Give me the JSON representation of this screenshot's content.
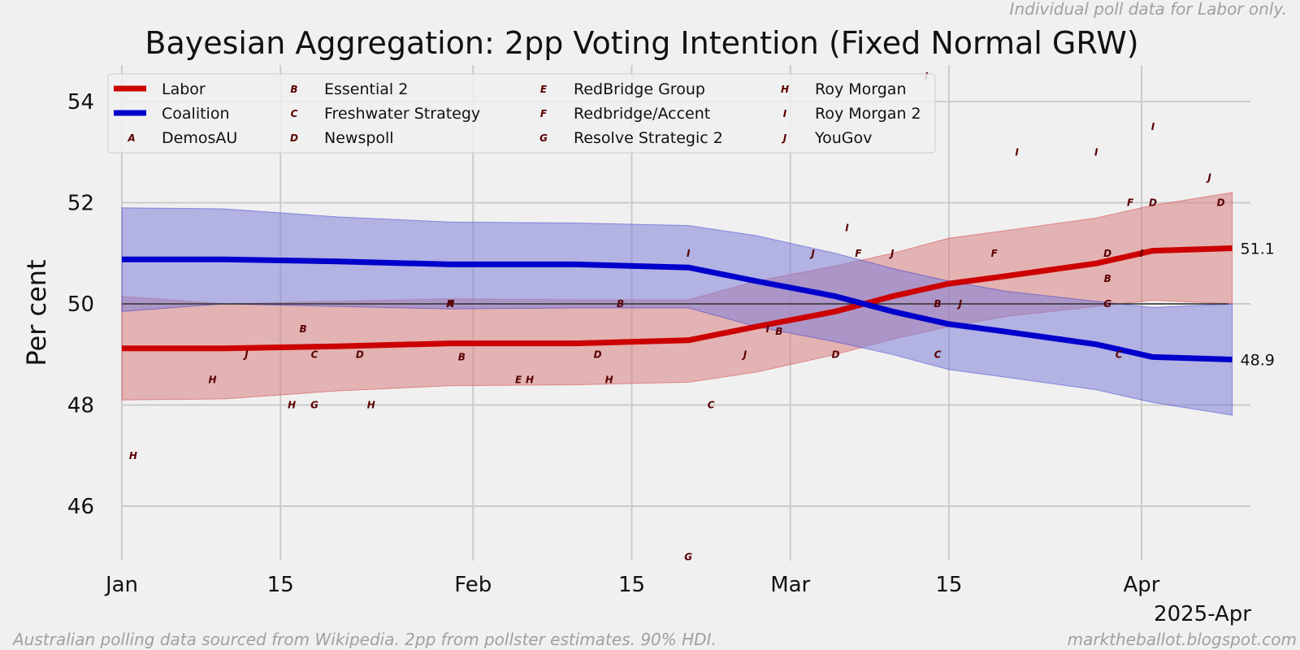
{
  "header_note": "Individual poll data for Labor only.",
  "footer_left": "Australian polling data sourced from Wikipedia. 2pp from pollster estimates. 90% HDI.",
  "footer_right": "marktheballot.blogspot.com",
  "chart_data": {
    "type": "line",
    "title": "Bayesian Aggregation: 2pp Voting Intention (Fixed Normal GRW)",
    "ylabel": "Per cent",
    "xlabel": "",
    "x_period_label": "2025-Apr",
    "x_domain": [
      "2025-01-01",
      "2025-04-09"
    ],
    "ylim": [
      44.8,
      54.7
    ],
    "x_ticks": [
      {
        "date": "2025-01-01",
        "label": "Jan"
      },
      {
        "date": "2025-01-15",
        "label": "15"
      },
      {
        "date": "2025-02-01",
        "label": "Feb"
      },
      {
        "date": "2025-02-15",
        "label": "15"
      },
      {
        "date": "2025-03-01",
        "label": "Mar"
      },
      {
        "date": "2025-03-15",
        "label": "15"
      },
      {
        "date": "2025-04-01",
        "label": "Apr"
      }
    ],
    "y_ticks": [
      46,
      48,
      50,
      52,
      54
    ],
    "reference_line": 50,
    "grid": true,
    "legend_position": "top-left",
    "end_labels": [
      "51.1",
      "48.9"
    ],
    "series": [
      {
        "name": "Labor",
        "color": "#cc0000",
        "band_color": "#d98080",
        "x": [
          "2025-01-01",
          "2025-01-10",
          "2025-01-20",
          "2025-01-30",
          "2025-02-10",
          "2025-02-20",
          "2025-02-26",
          "2025-03-05",
          "2025-03-10",
          "2025-03-15",
          "2025-03-20",
          "2025-03-28",
          "2025-04-02",
          "2025-04-09"
        ],
        "values": [
          49.12,
          49.12,
          49.16,
          49.22,
          49.22,
          49.28,
          49.55,
          49.85,
          50.15,
          50.4,
          50.55,
          50.8,
          51.05,
          51.1
        ],
        "lower": [
          48.1,
          48.12,
          48.28,
          48.38,
          48.4,
          48.45,
          48.65,
          49.0,
          49.3,
          49.55,
          49.75,
          49.95,
          50.07,
          50.0
        ],
        "upper": [
          50.15,
          50.0,
          50.05,
          50.1,
          50.08,
          50.08,
          50.45,
          50.75,
          51.0,
          51.3,
          51.45,
          51.7,
          51.95,
          52.2
        ]
      },
      {
        "name": "Coalition",
        "color": "#0000cc",
        "band_color": "#8080d9",
        "x": [
          "2025-01-01",
          "2025-01-10",
          "2025-01-20",
          "2025-01-30",
          "2025-02-10",
          "2025-02-20",
          "2025-02-26",
          "2025-03-05",
          "2025-03-10",
          "2025-03-15",
          "2025-03-20",
          "2025-03-28",
          "2025-04-02",
          "2025-04-09"
        ],
        "values": [
          50.88,
          50.88,
          50.84,
          50.78,
          50.78,
          50.72,
          50.45,
          50.15,
          49.85,
          49.6,
          49.45,
          49.2,
          48.95,
          48.9
        ],
        "lower": [
          49.85,
          50.0,
          49.95,
          49.9,
          49.92,
          49.92,
          49.55,
          49.25,
          49.0,
          48.7,
          48.55,
          48.3,
          48.05,
          47.8
        ],
        "upper": [
          51.9,
          51.88,
          51.72,
          51.62,
          51.6,
          51.55,
          51.35,
          51.0,
          50.7,
          50.45,
          50.25,
          50.05,
          49.93,
          50.0
        ]
      }
    ],
    "polls": [
      {
        "code": "H",
        "date": "2025-01-02",
        "value": 47.0
      },
      {
        "code": "H",
        "date": "2025-01-09",
        "value": 48.5
      },
      {
        "code": "J",
        "date": "2025-01-12",
        "value": 49.0
      },
      {
        "code": "H",
        "date": "2025-01-16",
        "value": 48.0
      },
      {
        "code": "B",
        "date": "2025-01-17",
        "value": 49.5
      },
      {
        "code": "C",
        "date": "2025-01-18",
        "value": 49.0
      },
      {
        "code": "G",
        "date": "2025-01-18",
        "value": 48.0
      },
      {
        "code": "D",
        "date": "2025-01-22",
        "value": 49.0
      },
      {
        "code": "H",
        "date": "2025-01-23",
        "value": 48.0
      },
      {
        "code": "A",
        "date": "2025-01-30",
        "value": 50.0
      },
      {
        "code": "H",
        "date": "2025-01-30",
        "value": 50.0
      },
      {
        "code": "B",
        "date": "2025-01-31",
        "value": 48.95
      },
      {
        "code": "E",
        "date": "2025-02-05",
        "value": 48.5
      },
      {
        "code": "H",
        "date": "2025-02-06",
        "value": 48.5
      },
      {
        "code": "D",
        "date": "2025-02-12",
        "value": 49.0
      },
      {
        "code": "H",
        "date": "2025-02-13",
        "value": 48.5
      },
      {
        "code": "B",
        "date": "2025-02-14",
        "value": 50.0
      },
      {
        "code": "I",
        "date": "2025-02-20",
        "value": 51.0
      },
      {
        "code": "G",
        "date": "2025-02-20",
        "value": 45.0
      },
      {
        "code": "C",
        "date": "2025-02-22",
        "value": 48.0
      },
      {
        "code": "J",
        "date": "2025-02-25",
        "value": 49.0
      },
      {
        "code": "I",
        "date": "2025-02-27",
        "value": 49.5
      },
      {
        "code": "B",
        "date": "2025-02-28",
        "value": 49.45
      },
      {
        "code": "J",
        "date": "2025-03-03",
        "value": 51.0
      },
      {
        "code": "D",
        "date": "2025-03-05",
        "value": 49.0
      },
      {
        "code": "I",
        "date": "2025-03-06",
        "value": 51.5
      },
      {
        "code": "F",
        "date": "2025-03-07",
        "value": 51.0
      },
      {
        "code": "J",
        "date": "2025-03-10",
        "value": 51.0
      },
      {
        "code": "I",
        "date": "2025-03-13",
        "value": 54.5
      },
      {
        "code": "C",
        "date": "2025-03-14",
        "value": 49.0
      },
      {
        "code": "B",
        "date": "2025-03-14",
        "value": 50.0
      },
      {
        "code": "J",
        "date": "2025-03-16",
        "value": 50.0
      },
      {
        "code": "F",
        "date": "2025-03-19",
        "value": 51.0
      },
      {
        "code": "I",
        "date": "2025-03-21",
        "value": 53.0
      },
      {
        "code": "I",
        "date": "2025-03-28",
        "value": 53.0
      },
      {
        "code": "D",
        "date": "2025-03-29",
        "value": 51.0
      },
      {
        "code": "B",
        "date": "2025-03-29",
        "value": 50.5
      },
      {
        "code": "G",
        "date": "2025-03-29",
        "value": 50.0
      },
      {
        "code": "C",
        "date": "2025-03-30",
        "value": 49.0
      },
      {
        "code": "F",
        "date": "2025-03-31",
        "value": 52.0
      },
      {
        "code": "I",
        "date": "2025-04-01",
        "value": 51.0
      },
      {
        "code": "D",
        "date": "2025-04-02",
        "value": 52.0
      },
      {
        "code": "I",
        "date": "2025-04-02",
        "value": 53.5
      },
      {
        "code": "J",
        "date": "2025-04-07",
        "value": 52.5
      },
      {
        "code": "D",
        "date": "2025-04-08",
        "value": 52.0
      }
    ],
    "legend": [
      {
        "marker": "",
        "label": "Labor",
        "color": "#cc0000"
      },
      {
        "marker": "",
        "label": "Coalition",
        "color": "#0000cc"
      },
      {
        "marker": "A",
        "label": "DemosAU"
      },
      {
        "marker": "B",
        "label": "Essential 2"
      },
      {
        "marker": "C",
        "label": "Freshwater Strategy"
      },
      {
        "marker": "D",
        "label": "Newspoll"
      },
      {
        "marker": "E",
        "label": "RedBridge Group"
      },
      {
        "marker": "F",
        "label": "Redbridge/Accent"
      },
      {
        "marker": "G",
        "label": "Resolve Strategic 2"
      },
      {
        "marker": "H",
        "label": "Roy Morgan"
      },
      {
        "marker": "I",
        "label": "Roy Morgan 2"
      },
      {
        "marker": "J",
        "label": "YouGov"
      }
    ]
  }
}
